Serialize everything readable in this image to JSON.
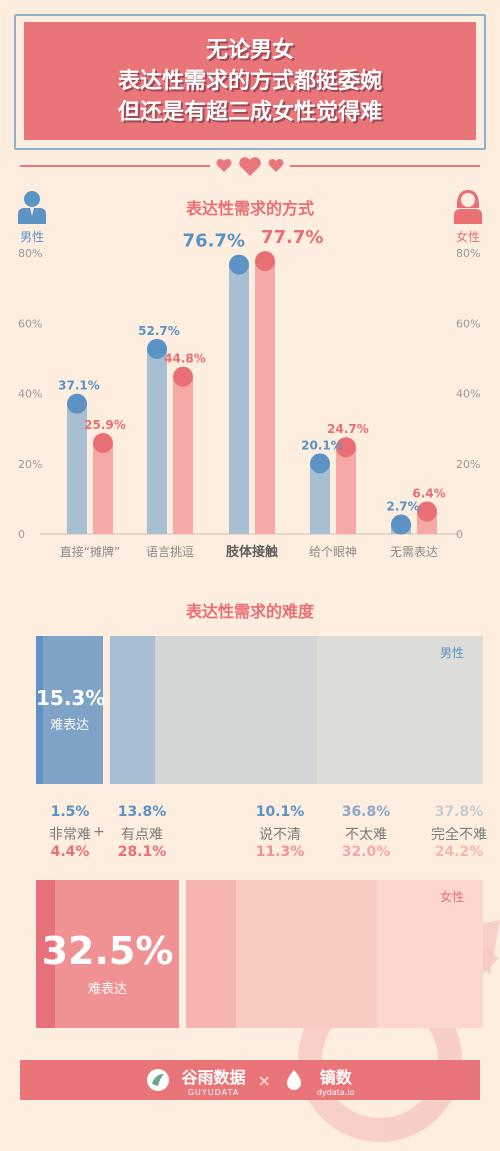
{
  "title": {
    "line1": "无论男女",
    "line2": "表达性需求的方式都挺委婉",
    "line3": "但还是有超三成女性觉得难"
  },
  "colors": {
    "male": "#5c92c4",
    "male_bar": "#a8bfd3",
    "female": "#ea6f75",
    "female_bar": "#f5a8a6",
    "title_bg": "#ea7579",
    "background": "#fdeee0"
  },
  "icons": {
    "male": "male-person-icon",
    "female": "female-person-icon",
    "hearts": "hearts-divider-icon",
    "male_symbol": "male-symbol-watermark-icon"
  },
  "section1": {
    "title": "表达性需求的方式",
    "male_label": "男性",
    "female_label": "女性"
  },
  "chart_data": [
    {
      "type": "bar",
      "title": "表达性需求的方式",
      "categories": [
        "直接“摊牌”",
        "语言挑逗",
        "肢体接触",
        "给个眼神",
        "无需表达"
      ],
      "series": [
        {
          "name": "男性",
          "values": [
            37.1,
            52.7,
            76.7,
            20.1,
            2.7
          ],
          "labels": [
            "37.1%",
            "52.7%",
            "76.7%",
            "20.1%",
            "2.7%"
          ]
        },
        {
          "name": "女性",
          "values": [
            25.9,
            44.8,
            77.7,
            24.7,
            6.4
          ],
          "labels": [
            "25.9%",
            "44.8%",
            "77.7%",
            "24.7%",
            "6.4%"
          ]
        }
      ],
      "yticks": [
        "0",
        "20%",
        "40%",
        "60%",
        "80%"
      ],
      "ylim": [
        0,
        80
      ],
      "grid": false,
      "legend": "none"
    },
    {
      "type": "bar",
      "title": "表达性需求的难度",
      "stacked": "horizontal-100%",
      "categories": [
        "非常难",
        "有点难",
        "说不清",
        "不太难",
        "完全不难"
      ],
      "series": [
        {
          "name": "男性",
          "values": [
            1.5,
            13.8,
            10.1,
            36.8,
            37.8
          ],
          "labels": [
            "1.5%",
            "13.8%",
            "10.1%",
            "36.8%",
            "37.8%"
          ],
          "summary": "15.3%",
          "summary_label": "难表达"
        },
        {
          "name": "女性",
          "values": [
            4.4,
            28.1,
            11.3,
            32.0,
            24.2
          ],
          "labels": [
            "4.4%",
            "28.1%",
            "11.3%",
            "32.0%",
            "24.2%"
          ],
          "summary": "32.5%",
          "summary_label": "难表达"
        }
      ]
    }
  ],
  "section2": {
    "title": "表达性需求的难度",
    "male_label": "男性",
    "female_label": "女性",
    "plus": "+"
  },
  "footer": {
    "brand1": "谷雨数据",
    "brand1_sub": "GUYUDATA",
    "times": "×",
    "brand2": "镝数",
    "brand2_sub": "dydata.io"
  }
}
